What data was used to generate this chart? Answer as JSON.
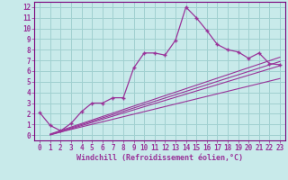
{
  "xlabel": "Windchill (Refroidissement éolien,°C)",
  "bg_color": "#c8eaea",
  "grid_color": "#a0d0d0",
  "line_color": "#993399",
  "spine_color": "#7a007a",
  "xlim": [
    -0.5,
    23.5
  ],
  "ylim": [
    -0.5,
    12.5
  ],
  "xticks": [
    0,
    1,
    2,
    3,
    4,
    5,
    6,
    7,
    8,
    9,
    10,
    11,
    12,
    13,
    14,
    15,
    16,
    17,
    18,
    19,
    20,
    21,
    22,
    23
  ],
  "yticks": [
    0,
    1,
    2,
    3,
    4,
    5,
    6,
    7,
    8,
    9,
    10,
    11,
    12
  ],
  "line1_x": [
    0,
    1,
    2,
    3,
    4,
    5,
    6,
    7,
    8,
    9,
    10,
    11,
    12,
    13,
    14,
    15,
    16,
    17,
    18,
    19,
    20,
    21,
    22,
    23
  ],
  "line1_y": [
    2.1,
    0.9,
    0.4,
    1.1,
    2.2,
    3.0,
    3.0,
    3.5,
    3.5,
    6.3,
    7.7,
    7.7,
    7.5,
    8.9,
    12.0,
    11.0,
    9.8,
    8.5,
    8.0,
    7.8,
    7.2,
    7.7,
    6.7,
    6.6
  ],
  "line2_x": [
    1,
    23
  ],
  "line2_y": [
    0.1,
    7.3
  ],
  "line3_x": [
    1,
    23
  ],
  "line3_y": [
    0.0,
    6.5
  ],
  "line4_x": [
    1,
    23
  ],
  "line4_y": [
    0.05,
    6.9
  ],
  "line5_x": [
    1,
    23
  ],
  "line5_y": [
    0.05,
    5.3
  ],
  "font_color": "#993399",
  "font_family": "monospace",
  "tick_fontsize": 5.5,
  "xlabel_fontsize": 6.0
}
